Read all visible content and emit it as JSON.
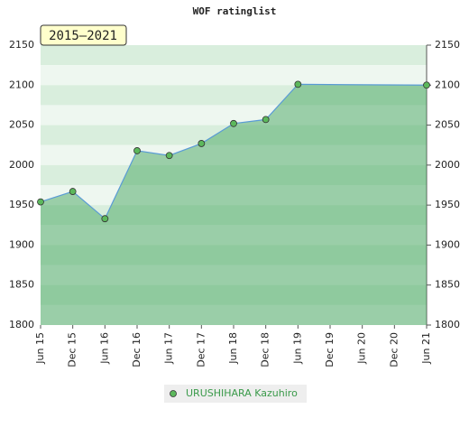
{
  "chart_data": {
    "type": "area",
    "title": "WOF ratinglist",
    "annotation": "2015–2021",
    "x": [
      0,
      6,
      12,
      18,
      24,
      30,
      36,
      42,
      48,
      72
    ],
    "xlim": [
      0,
      72
    ],
    "xticks": [
      {
        "value": 0,
        "label": "Jun 15"
      },
      {
        "value": 6,
        "label": "Dec 15"
      },
      {
        "value": 12,
        "label": "Jun 16"
      },
      {
        "value": 18,
        "label": "Dec 16"
      },
      {
        "value": 24,
        "label": "Jun 17"
      },
      {
        "value": 30,
        "label": "Dec 17"
      },
      {
        "value": 36,
        "label": "Jun 18"
      },
      {
        "value": 42,
        "label": "Dec 18"
      },
      {
        "value": 48,
        "label": "Jun 19"
      },
      {
        "value": 54,
        "label": "Dec 19"
      },
      {
        "value": 60,
        "label": "Jun 20"
      },
      {
        "value": 66,
        "label": "Dec 20"
      },
      {
        "value": 72,
        "label": "Jun 21"
      }
    ],
    "ylim": [
      1800,
      2150
    ],
    "yticks": [
      1800,
      1850,
      1900,
      1950,
      2000,
      2050,
      2100,
      2150
    ],
    "series": [
      {
        "name": "URUSHIHARA Kazuhiro",
        "color": "#5cb85c",
        "values": [
          1954,
          1967,
          1933,
          2018,
          2012,
          2027,
          2052,
          2057,
          2101,
          2100
        ]
      }
    ]
  }
}
